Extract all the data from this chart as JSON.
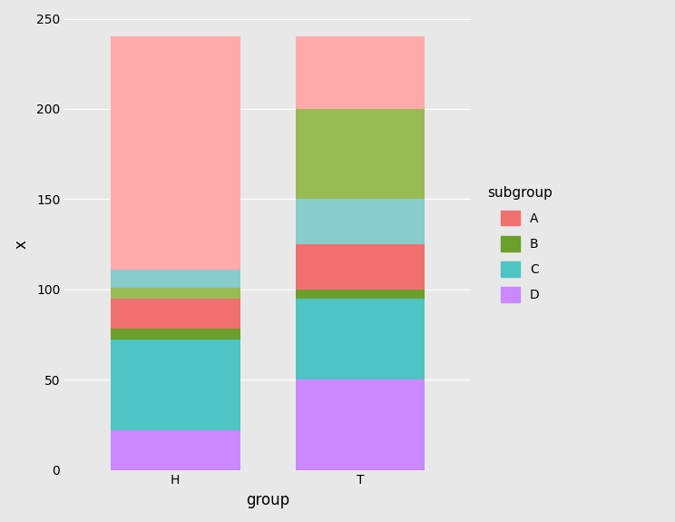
{
  "groups": [
    "H",
    "T"
  ],
  "h_stacks": [
    {
      "label": "D",
      "value": 22,
      "color": "#CC88FF"
    },
    {
      "label": "C",
      "value": 50,
      "color": "#4EC4C4"
    },
    {
      "label": "B",
      "value": 6,
      "color": "#6B9E2A"
    },
    {
      "label": "A",
      "value": 17,
      "color": "#F07070"
    },
    {
      "label": "B",
      "value": 6,
      "color": "#99BB55"
    },
    {
      "label": "C",
      "value": 10,
      "color": "#88CCCC"
    },
    {
      "label": "A",
      "value": 129,
      "color": "#FFAAAA"
    }
  ],
  "t_stacks": [
    {
      "label": "D",
      "value": 50,
      "color": "#CC88FF"
    },
    {
      "label": "C",
      "value": 45,
      "color": "#4EC4C4"
    },
    {
      "label": "B",
      "value": 5,
      "color": "#6B9E2A"
    },
    {
      "label": "A",
      "value": 25,
      "color": "#F07070"
    },
    {
      "label": "C",
      "value": 25,
      "color": "#88CCCC"
    },
    {
      "label": "B",
      "value": 50,
      "color": "#99BB55"
    },
    {
      "label": "A",
      "value": 40,
      "color": "#FFAAAA"
    }
  ],
  "legend_labels": [
    {
      "label": "A",
      "color": "#F07070"
    },
    {
      "label": "B",
      "color": "#6B9E2A"
    },
    {
      "label": "C",
      "color": "#4EC4C4"
    },
    {
      "label": "D",
      "color": "#CC88FF"
    }
  ],
  "xlabel": "group",
  "ylabel": "x",
  "ylim": [
    0,
    250
  ],
  "yticks": [
    0,
    50,
    100,
    150,
    200,
    250
  ],
  "background_color": "#E8E8E8",
  "legend_title": "subgroup",
  "bar_width": 0.7,
  "x_positions": [
    1,
    2
  ],
  "xlim": [
    0.4,
    2.6
  ]
}
